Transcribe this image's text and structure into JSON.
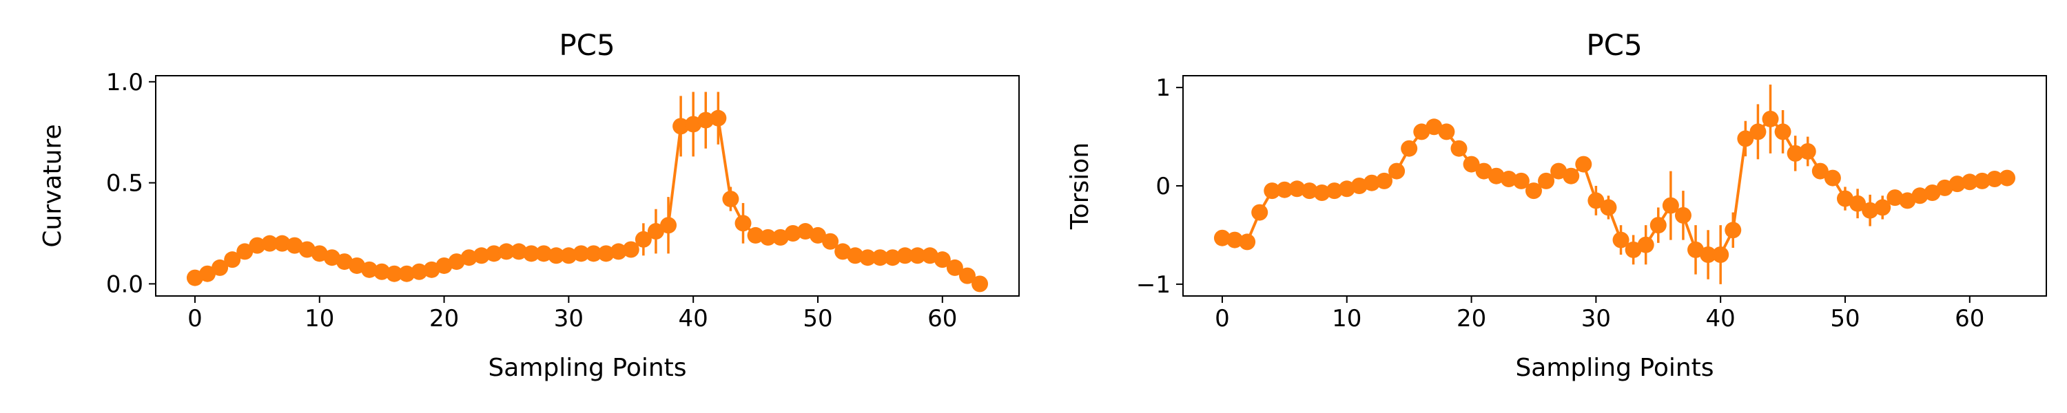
{
  "colors": {
    "series": "#ff7f0e",
    "axes": "#000000",
    "background": "#ffffff"
  },
  "chart_data": [
    {
      "type": "line",
      "title": "PC5",
      "xlabel": "Sampling Points",
      "ylabel": "Curvature",
      "xlim": [
        -3.15,
        66.15
      ],
      "ylim": [
        -0.06,
        1.03
      ],
      "xticks": [
        0,
        10,
        20,
        30,
        40,
        50,
        60
      ],
      "xtick_labels": [
        "0",
        "10",
        "20",
        "30",
        "40",
        "50",
        "60"
      ],
      "yticks": [
        0.0,
        0.5,
        1.0
      ],
      "ytick_labels": [
        "0.0",
        "0.5",
        "1.0"
      ],
      "grid": false,
      "marker": "circle",
      "x": [
        0,
        1,
        2,
        3,
        4,
        5,
        6,
        7,
        8,
        9,
        10,
        11,
        12,
        13,
        14,
        15,
        16,
        17,
        18,
        19,
        20,
        21,
        22,
        23,
        24,
        25,
        26,
        27,
        28,
        29,
        30,
        31,
        32,
        33,
        34,
        35,
        36,
        37,
        38,
        39,
        40,
        41,
        42,
        43,
        44,
        45,
        46,
        47,
        48,
        49,
        50,
        51,
        52,
        53,
        54,
        55,
        56,
        57,
        58,
        59,
        60,
        61,
        62,
        63
      ],
      "y": [
        0.03,
        0.05,
        0.08,
        0.12,
        0.16,
        0.19,
        0.2,
        0.2,
        0.19,
        0.17,
        0.15,
        0.13,
        0.11,
        0.09,
        0.07,
        0.06,
        0.05,
        0.05,
        0.06,
        0.07,
        0.09,
        0.11,
        0.13,
        0.14,
        0.15,
        0.16,
        0.16,
        0.15,
        0.15,
        0.14,
        0.14,
        0.15,
        0.15,
        0.15,
        0.16,
        0.17,
        0.22,
        0.26,
        0.29,
        0.78,
        0.79,
        0.81,
        0.82,
        0.42,
        0.3,
        0.24,
        0.23,
        0.23,
        0.25,
        0.26,
        0.24,
        0.21,
        0.16,
        0.14,
        0.13,
        0.13,
        0.13,
        0.14,
        0.14,
        0.14,
        0.12,
        0.08,
        0.04,
        0.0
      ],
      "yerr": [
        0.01,
        0.01,
        0.01,
        0.01,
        0.01,
        0.01,
        0.01,
        0.01,
        0.01,
        0.01,
        0.01,
        0.01,
        0.01,
        0.01,
        0.01,
        0.01,
        0.01,
        0.01,
        0.01,
        0.01,
        0.01,
        0.01,
        0.01,
        0.01,
        0.01,
        0.01,
        0.01,
        0.01,
        0.01,
        0.01,
        0.01,
        0.01,
        0.01,
        0.01,
        0.02,
        0.03,
        0.08,
        0.11,
        0.14,
        0.15,
        0.16,
        0.14,
        0.13,
        0.06,
        0.1,
        0.03,
        0.02,
        0.02,
        0.02,
        0.02,
        0.02,
        0.02,
        0.01,
        0.01,
        0.01,
        0.01,
        0.01,
        0.01,
        0.01,
        0.01,
        0.01,
        0.01,
        0.01,
        0.01
      ]
    },
    {
      "type": "line",
      "title": "PC5",
      "xlabel": "Sampling Points",
      "ylabel": "Torsion",
      "xlim": [
        -3.15,
        66.15
      ],
      "ylim": [
        -1.12,
        1.12
      ],
      "xticks": [
        0,
        10,
        20,
        30,
        40,
        50,
        60
      ],
      "xtick_labels": [
        "0",
        "10",
        "20",
        "30",
        "40",
        "50",
        "60"
      ],
      "yticks": [
        -1,
        0,
        1
      ],
      "ytick_labels": [
        "−1",
        "0",
        "1"
      ],
      "grid": false,
      "marker": "circle",
      "x": [
        0,
        1,
        2,
        3,
        4,
        5,
        6,
        7,
        8,
        9,
        10,
        11,
        12,
        13,
        14,
        15,
        16,
        17,
        18,
        19,
        20,
        21,
        22,
        23,
        24,
        25,
        26,
        27,
        28,
        29,
        30,
        31,
        32,
        33,
        34,
        35,
        36,
        37,
        38,
        39,
        40,
        41,
        42,
        43,
        44,
        45,
        46,
        47,
        48,
        49,
        50,
        51,
        52,
        53,
        54,
        55,
        56,
        57,
        58,
        59,
        60,
        61,
        62,
        63
      ],
      "y": [
        -0.53,
        -0.55,
        -0.57,
        -0.27,
        -0.05,
        -0.04,
        -0.03,
        -0.05,
        -0.07,
        -0.05,
        -0.03,
        0.0,
        0.03,
        0.05,
        0.15,
        0.38,
        0.55,
        0.6,
        0.55,
        0.38,
        0.22,
        0.15,
        0.1,
        0.07,
        0.05,
        -0.05,
        0.05,
        0.15,
        0.1,
        0.22,
        -0.15,
        -0.22,
        -0.55,
        -0.65,
        -0.6,
        -0.4,
        -0.2,
        -0.3,
        -0.65,
        -0.7,
        -0.7,
        -0.45,
        0.48,
        0.55,
        0.68,
        0.55,
        0.33,
        0.35,
        0.15,
        0.08,
        -0.13,
        -0.18,
        -0.25,
        -0.22,
        -0.12,
        -0.15,
        -0.1,
        -0.07,
        -0.02,
        0.02,
        0.04,
        0.05,
        0.07,
        0.08
      ],
      "yerr": [
        0.08,
        0.08,
        0.08,
        0.06,
        0.04,
        0.05,
        0.05,
        0.05,
        0.05,
        0.04,
        0.04,
        0.04,
        0.04,
        0.04,
        0.05,
        0.07,
        0.06,
        0.05,
        0.05,
        0.06,
        0.05,
        0.04,
        0.04,
        0.04,
        0.04,
        0.04,
        0.05,
        0.05,
        0.06,
        0.08,
        0.15,
        0.12,
        0.15,
        0.15,
        0.2,
        0.18,
        0.35,
        0.25,
        0.25,
        0.25,
        0.3,
        0.18,
        0.18,
        0.28,
        0.35,
        0.22,
        0.18,
        0.15,
        0.08,
        0.08,
        0.12,
        0.15,
        0.16,
        0.12,
        0.08,
        0.06,
        0.05,
        0.05,
        0.05,
        0.04,
        0.04,
        0.04,
        0.04,
        0.04
      ]
    }
  ]
}
